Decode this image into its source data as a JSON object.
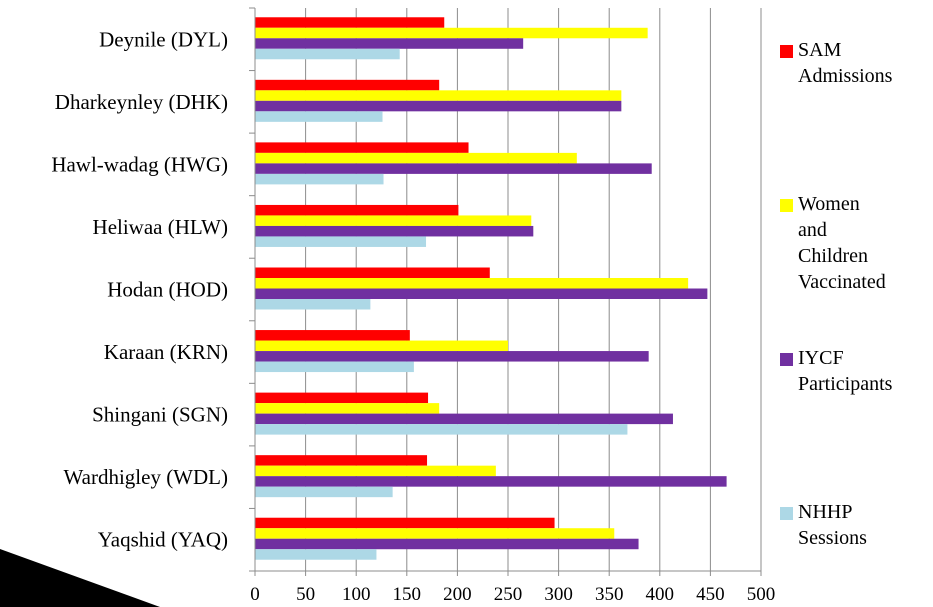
{
  "chart_data": {
    "type": "bar",
    "orientation": "horizontal",
    "categories": [
      "Deynile (DYL)",
      "Dharkeynley (DHK)",
      "Hawl-wadag (HWG)",
      "Heliwaa (HLW)",
      "Hodan (HOD)",
      "Karaan (KRN)",
      "Shingani (SGN)",
      "Wardhigley (WDL)",
      "Yaqshid (YAQ)"
    ],
    "series": [
      {
        "name": "SAM Admissions",
        "color": "#ff0000",
        "values": [
          187,
          182,
          211,
          201,
          232,
          153,
          171,
          170,
          296
        ]
      },
      {
        "name": "Women and Children Vaccinated",
        "color": "#ffff00",
        "values": [
          388,
          362,
          318,
          273,
          428,
          250,
          182,
          238,
          355
        ]
      },
      {
        "name": "IYCF Participants",
        "color": "#7030a0",
        "values": [
          265,
          362,
          392,
          275,
          447,
          389,
          413,
          466,
          379
        ]
      },
      {
        "name": "NHHP Sessions",
        "color": "#add8e6",
        "values": [
          143,
          126,
          127,
          169,
          114,
          157,
          368,
          136,
          120
        ]
      }
    ],
    "xlim": [
      0,
      500
    ],
    "xticks": [
      "0",
      "50",
      "100",
      "150",
      "200",
      "250",
      "300",
      "350",
      "400",
      "450",
      "500"
    ],
    "grid": true,
    "legend_position": "right"
  },
  "legend": {
    "items": [
      {
        "label": "SAM\nAdmissions",
        "color": "#ff0000"
      },
      {
        "label": "Women and\nChildren\nVaccinated",
        "color": "#ffff00"
      },
      {
        "label": "IYCF\nParticipants",
        "color": "#7030a0"
      },
      {
        "label": "NHHP\nSessions",
        "color": "#add8e6"
      }
    ]
  }
}
